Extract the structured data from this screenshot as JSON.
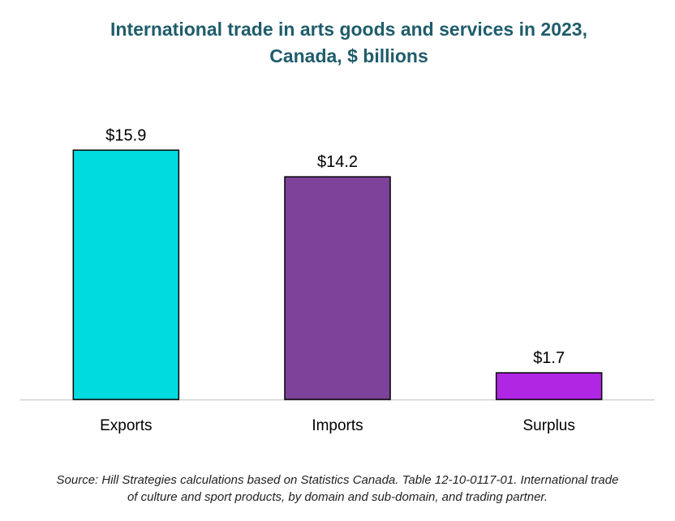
{
  "chart_data": {
    "type": "bar",
    "title_lines": [
      "International trade in arts goods and services in 2023,",
      "Canada, $ billions"
    ],
    "categories": [
      "Exports",
      "Imports",
      "Surplus"
    ],
    "values": [
      15.9,
      14.2,
      1.7
    ],
    "data_labels": [
      "$15.9",
      "$14.2",
      "$1.7"
    ],
    "colors": [
      "#00dbe0",
      "#7d4299",
      "#b026e3"
    ],
    "ylim": [
      0,
      18
    ],
    "grid": false,
    "legend": "none",
    "xlabel": "",
    "ylabel": ""
  },
  "source_lines": [
    "Source: Hill Strategies calculations based on Statistics Canada. Table 12-10-0117-01. International trade",
    "of culture and sport products, by domain and sub-domain, and trading partner."
  ]
}
